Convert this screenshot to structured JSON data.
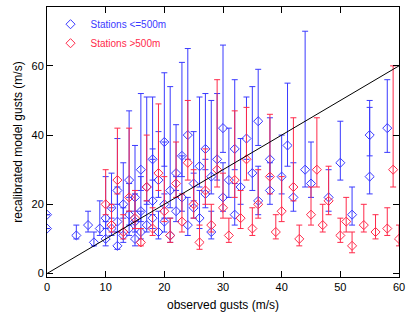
{
  "chart_data": {
    "type": "scatter",
    "x_label": "observed gusts (m/s)",
    "y_label": "recalibrated model gusts (m/s)",
    "xlim": [
      0,
      60
    ],
    "ylim": [
      -1,
      77
    ],
    "xticks": [
      0,
      10,
      20,
      30,
      40,
      50,
      60
    ],
    "yticks": [
      0,
      20,
      40,
      60
    ],
    "grid": false,
    "legend": "upper left",
    "reference_line": {
      "x": [
        0,
        60
      ],
      "values": [
        0,
        60
      ],
      "color": "#000000"
    },
    "series": [
      {
        "name": "Stations <=500m",
        "color": "#3a3aff",
        "marker": "diamond-open",
        "x": [
          0,
          0,
          5,
          7,
          8,
          9,
          10,
          10,
          11,
          11,
          12,
          12,
          12,
          13,
          13,
          14,
          14,
          14,
          15,
          15,
          15,
          16,
          16,
          16,
          17,
          17,
          18,
          18,
          18,
          19,
          19,
          20,
          20,
          20,
          21,
          21,
          22,
          22,
          23,
          23,
          24,
          24,
          25,
          25,
          26,
          26,
          27,
          27,
          28,
          28,
          29,
          30,
          30,
          31,
          32,
          32,
          33,
          34,
          35,
          36,
          36,
          38,
          38,
          40,
          41,
          42,
          44,
          45,
          48,
          50,
          52,
          55,
          58,
          55
        ],
        "values": [
          17,
          13,
          11,
          14,
          9,
          13,
          16,
          10,
          19,
          13,
          24,
          15,
          8,
          20,
          11,
          27,
          17,
          13,
          22,
          15,
          10,
          30,
          18,
          12,
          25,
          14,
          21,
          33,
          16,
          12,
          27,
          20,
          38,
          15,
          24,
          11,
          29,
          18,
          34,
          22,
          14,
          40,
          26,
          19,
          31,
          16,
          36,
          23,
          28,
          12,
          33,
          22,
          42,
          27,
          36,
          17,
          25,
          39,
          29,
          21,
          44,
          33,
          24,
          28,
          37,
          22,
          30,
          26,
          22,
          32,
          17,
          28,
          42,
          40
        ],
        "error_plus": [
          0,
          0,
          3,
          4,
          3,
          8,
          12,
          5,
          10,
          6,
          15,
          10,
          4,
          12,
          8,
          20,
          9,
          5,
          15,
          8,
          5,
          22,
          10,
          6,
          26,
          7,
          12,
          18,
          20,
          6,
          14,
          18,
          20,
          8,
          30,
          5,
          14,
          10,
          27,
          12,
          8,
          25,
          15,
          10,
          20,
          8,
          16,
          10,
          22,
          6,
          19,
          10,
          24,
          15,
          20,
          9,
          14,
          12,
          25,
          10,
          15,
          12,
          8,
          12,
          18,
          10,
          40,
          12,
          8,
          12,
          8,
          20,
          14,
          10
        ],
        "error_minus": [
          0,
          0,
          1,
          2,
          1,
          2,
          3,
          2,
          3,
          2,
          4,
          3,
          1,
          4,
          2,
          5,
          3,
          2,
          4,
          3,
          2,
          6,
          3,
          2,
          5,
          2,
          4,
          6,
          3,
          2,
          5,
          4,
          7,
          3,
          5,
          2,
          5,
          3,
          6,
          4,
          3,
          7,
          5,
          3,
          6,
          3,
          6,
          4,
          5,
          2,
          6,
          4,
          7,
          5,
          6,
          3,
          5,
          6,
          5,
          4,
          7,
          5,
          4,
          5,
          6,
          4,
          5,
          4,
          4,
          5,
          3,
          5,
          7,
          6
        ]
      },
      {
        "name": "Stations >500m",
        "color": "#ff2a4a",
        "marker": "diamond-open",
        "x": [
          10,
          11,
          12,
          13,
          14,
          15,
          16,
          17,
          18,
          19,
          20,
          21,
          22,
          23,
          24,
          25,
          26,
          27,
          28,
          29,
          30,
          31,
          32,
          33,
          34,
          35,
          36,
          38,
          39,
          40,
          42,
          43,
          45,
          46,
          47,
          48,
          50,
          51,
          52,
          54,
          56,
          58,
          59,
          60
        ],
        "values": [
          20,
          14,
          27,
          12,
          22,
          16,
          9,
          25,
          13,
          29,
          18,
          11,
          26,
          15,
          32,
          20,
          9,
          24,
          14,
          30,
          19,
          11,
          27,
          16,
          33,
          13,
          20,
          28,
          12,
          18,
          25,
          10,
          17,
          30,
          14,
          21,
          11,
          15,
          8,
          14,
          12,
          13,
          30,
          10
        ],
        "error_plus": [
          10,
          6,
          15,
          5,
          20,
          8,
          4,
          15,
          6,
          20,
          10,
          5,
          12,
          8,
          18,
          10,
          5,
          12,
          6,
          26,
          10,
          5,
          20,
          8,
          15,
          6,
          10,
          18,
          5,
          10,
          20,
          4,
          8,
          15,
          6,
          10,
          5,
          7,
          4,
          6,
          5,
          6,
          30,
          4
        ],
        "error_minus": [
          3,
          2,
          4,
          2,
          4,
          3,
          1,
          4,
          2,
          5,
          3,
          2,
          4,
          3,
          5,
          4,
          2,
          4,
          2,
          5,
          3,
          2,
          5,
          3,
          6,
          2,
          4,
          5,
          2,
          3,
          4,
          2,
          3,
          5,
          2,
          4,
          2,
          3,
          2,
          2,
          2,
          2,
          5,
          2
        ]
      }
    ]
  }
}
